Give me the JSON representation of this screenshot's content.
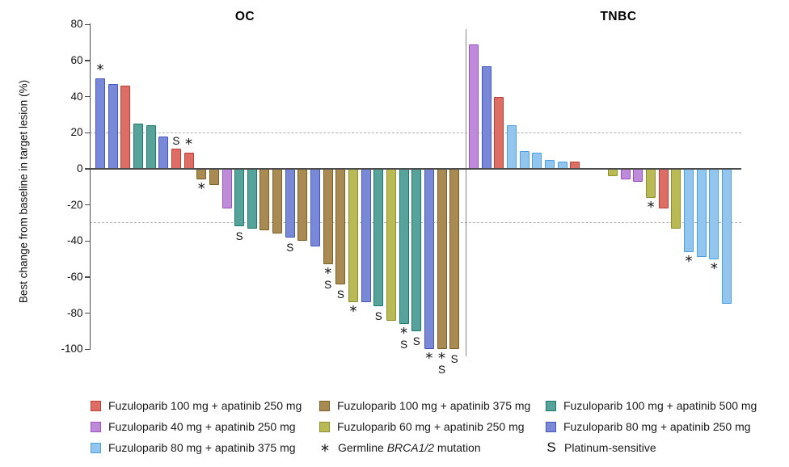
{
  "chart_data": {
    "type": "bar",
    "subtype": "waterfall",
    "ylabel": "Best change from baseline in target lesion (%)",
    "ylim": [
      -100,
      80
    ],
    "yticks": [
      80,
      60,
      40,
      20,
      0,
      -20,
      -40,
      -60,
      -80,
      -100
    ],
    "reference_lines": [
      20,
      -30
    ],
    "grid": "off",
    "marker_meanings": {
      "star": "Germline BRCA1/2 mutation",
      "S": "Platinum-sensitive"
    },
    "palette": {
      "red": {
        "fill": "#DD6E66",
        "stroke": "#C13B33"
      },
      "purple": {
        "fill": "#BE8BD8",
        "stroke": "#9D4EC4"
      },
      "skyblue": {
        "fill": "#92C6EE",
        "stroke": "#4D9FE3"
      },
      "brown": {
        "fill": "#A98A53",
        "stroke": "#7E5F26"
      },
      "yellowgreen": {
        "fill": "#B9BA55",
        "stroke": "#8C8F2A"
      },
      "teal": {
        "fill": "#57A29A",
        "stroke": "#19796C"
      },
      "blue": {
        "fill": "#7A89D6",
        "stroke": "#4356C6"
      }
    },
    "groups": [
      {
        "label": "OC",
        "bars": [
          {
            "value": 50,
            "arm": "blue",
            "marks": "*"
          },
          {
            "value": 47,
            "arm": "blue"
          },
          {
            "value": 46,
            "arm": "red"
          },
          {
            "value": 25,
            "arm": "teal"
          },
          {
            "value": 24,
            "arm": "teal"
          },
          {
            "value": 18,
            "arm": "blue"
          },
          {
            "value": 11,
            "arm": "red",
            "marks": "S"
          },
          {
            "value": 9,
            "arm": "red",
            "marks": "*"
          },
          {
            "value": -6,
            "arm": "brown",
            "marks": "*"
          },
          {
            "value": -9,
            "arm": "brown"
          },
          {
            "value": -22,
            "arm": "purple"
          },
          {
            "value": -32,
            "arm": "teal",
            "marks": "S"
          },
          {
            "value": -33,
            "arm": "teal"
          },
          {
            "value": -34,
            "arm": "brown"
          },
          {
            "value": -36,
            "arm": "brown"
          },
          {
            "value": -38,
            "arm": "blue",
            "marks": "S"
          },
          {
            "value": -40,
            "arm": "brown"
          },
          {
            "value": -43,
            "arm": "blue"
          },
          {
            "value": -53,
            "arm": "brown",
            "marks": "*S"
          },
          {
            "value": -64,
            "arm": "brown",
            "marks": "S"
          },
          {
            "value": -74,
            "arm": "yellowgreen",
            "marks": "*"
          },
          {
            "value": -74,
            "arm": "blue"
          },
          {
            "value": -76,
            "arm": "teal",
            "marks": "S"
          },
          {
            "value": -84,
            "arm": "yellowgreen"
          },
          {
            "value": -86,
            "arm": "teal",
            "marks": "*S"
          },
          {
            "value": -90,
            "arm": "teal",
            "marks": "S"
          },
          {
            "value": -100,
            "arm": "blue",
            "marks": "*"
          },
          {
            "value": -100,
            "arm": "brown",
            "marks": "*S"
          },
          {
            "value": -100,
            "arm": "brown",
            "marks": "S"
          }
        ]
      },
      {
        "label": "TNBC",
        "bars": [
          {
            "value": 69,
            "arm": "purple"
          },
          {
            "value": 57,
            "arm": "blue"
          },
          {
            "value": 40,
            "arm": "red"
          },
          {
            "value": 24,
            "arm": "skyblue"
          },
          {
            "value": 10,
            "arm": "skyblue"
          },
          {
            "value": 9,
            "arm": "skyblue"
          },
          {
            "value": 5,
            "arm": "skyblue"
          },
          {
            "value": 4,
            "arm": "skyblue"
          },
          {
            "value": 4,
            "arm": "red"
          },
          {
            "value": 0,
            "arm": null
          },
          {
            "value": 0,
            "arm": null
          },
          {
            "value": -4,
            "arm": "yellowgreen"
          },
          {
            "value": -6,
            "arm": "purple"
          },
          {
            "value": -7,
            "arm": "purple"
          },
          {
            "value": -16,
            "arm": "yellowgreen",
            "marks": "*"
          },
          {
            "value": -22,
            "arm": "red"
          },
          {
            "value": -33,
            "arm": "yellowgreen"
          },
          {
            "value": -46,
            "arm": "skyblue",
            "marks": "*"
          },
          {
            "value": -49,
            "arm": "skyblue"
          },
          {
            "value": -50,
            "arm": "skyblue",
            "marks": "*"
          },
          {
            "value": -75,
            "arm": "skyblue"
          }
        ]
      }
    ]
  },
  "legend": {
    "columns": [
      [
        {
          "swatch": "red",
          "label": "Fuzuloparib 100 mg + apatinib 250 mg"
        },
        {
          "swatch": "purple",
          "label": "Fuzuloparib 40 mg + apatinib 250 mg"
        },
        {
          "swatch": "skyblue",
          "label": "Fuzuloparib 80 mg + apatinib 375 mg"
        }
      ],
      [
        {
          "swatch": "brown",
          "label": "Fuzuloparib 100 mg + apatinib 375 mg"
        },
        {
          "swatch": "yellowgreen",
          "label": "Fuzuloparib 60 mg + apatinib 250 mg"
        },
        {
          "symbol": "*",
          "label_prefix": "Germline ",
          "label_italic": "BRCA1/2",
          "label_suffix": " mutation"
        }
      ],
      [
        {
          "swatch": "teal",
          "label": "Fuzuloparib 100 mg + apatinib 500 mg"
        },
        {
          "swatch": "blue",
          "label": "Fuzuloparib 80 mg + apatinib 250 mg"
        },
        {
          "symbol": "S",
          "label": "Platinum-sensitive"
        }
      ]
    ]
  }
}
